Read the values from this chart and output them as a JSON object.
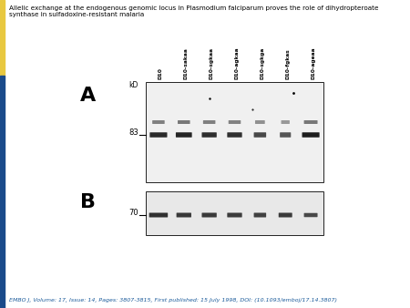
{
  "title_line1": "Allelic exchange at the endogenous genomic locus in Plasmodium falciparum proves the role of dihydropteroate",
  "title_line2": "synthase in sulfadoxine-resistant malaria",
  "footer": "EMBO J, Volume: 17, Issue: 14, Pages: 3807-3815, First published: 15 July 1998, DOI: (10.1093/emboj/17.14.3807)",
  "panel_A_label": "A",
  "panel_B_label": "B",
  "kd_label": "kD",
  "marker_83": "83",
  "marker_70": "70",
  "lane_labels": [
    "D10",
    "D10-sakaa",
    "D10-sgkaa",
    "D10-agkaa",
    "D10-sgkga",
    "D10-fgkas",
    "D10-ageaa"
  ],
  "bg_color": "#ffffff",
  "text_color": "#000000",
  "footer_color": "#1a5a9a",
  "yellow_bar_color": "#e8c840",
  "blue_bar_color": "#1a4a8a",
  "panel_a_bg": "#f0f0f0",
  "panel_b_bg": "#e8e8e8",
  "band_dark": "#404040",
  "band_medium": "#686868",
  "band_light": "#909090"
}
